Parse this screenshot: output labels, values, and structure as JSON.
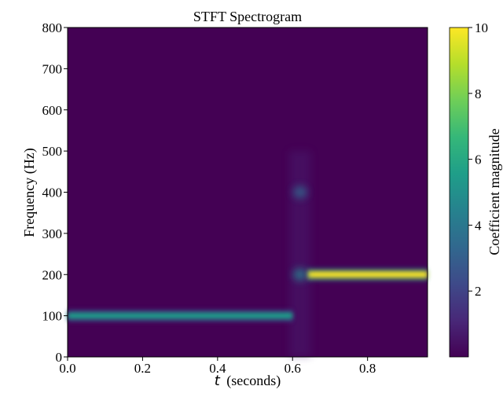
{
  "chart_data": {
    "type": "heatmap",
    "title": "STFT Spectrogram",
    "xlabel_var": "t",
    "xlabel_unit": "(seconds)",
    "ylabel": "Frequency (Hz)",
    "colorbar_label": "Coefficient magnitude",
    "xlim": [
      0.0,
      0.96
    ],
    "ylim": [
      0,
      800
    ],
    "clim": [
      0,
      10
    ],
    "x_ticks": [
      {
        "value": 0.0,
        "label": "0.0"
      },
      {
        "value": 0.2,
        "label": "0.2"
      },
      {
        "value": 0.4,
        "label": "0.4"
      },
      {
        "value": 0.6,
        "label": "0.6"
      },
      {
        "value": 0.8,
        "label": "0.8"
      }
    ],
    "y_ticks": [
      {
        "value": 0,
        "label": "0"
      },
      {
        "value": 100,
        "label": "100"
      },
      {
        "value": 200,
        "label": "200"
      },
      {
        "value": 300,
        "label": "300"
      },
      {
        "value": 400,
        "label": "400"
      },
      {
        "value": 500,
        "label": "500"
      },
      {
        "value": 600,
        "label": "600"
      },
      {
        "value": 700,
        "label": "700"
      },
      {
        "value": 800,
        "label": "800"
      }
    ],
    "colorbar_ticks": [
      {
        "value": 2,
        "label": "2"
      },
      {
        "value": 4,
        "label": "4"
      },
      {
        "value": 6,
        "label": "6"
      },
      {
        "value": 8,
        "label": "8"
      },
      {
        "value": 10,
        "label": "10"
      }
    ],
    "colormap": [
      "#440154",
      "#482878",
      "#3e4a89",
      "#31688e",
      "#26828e",
      "#1f9e89",
      "#35b779",
      "#6ece58",
      "#b5de2b",
      "#fde725"
    ],
    "background_color": "#440154",
    "features": [
      {
        "name": "100 Hz tone",
        "t_start": 0.0,
        "t_end": 0.6,
        "freq": 100,
        "magnitude": 5.0
      },
      {
        "name": "200 Hz tone",
        "t_start": 0.64,
        "t_end": 0.96,
        "freq": 200,
        "magnitude": 10.0
      },
      {
        "name": "transient 400 Hz",
        "t_start": 0.6,
        "t_end": 0.64,
        "freq": 400,
        "magnitude": 1.5
      },
      {
        "name": "transient 200 Hz",
        "t_start": 0.6,
        "t_end": 0.64,
        "freq": 200,
        "magnitude": 2.0
      }
    ]
  }
}
